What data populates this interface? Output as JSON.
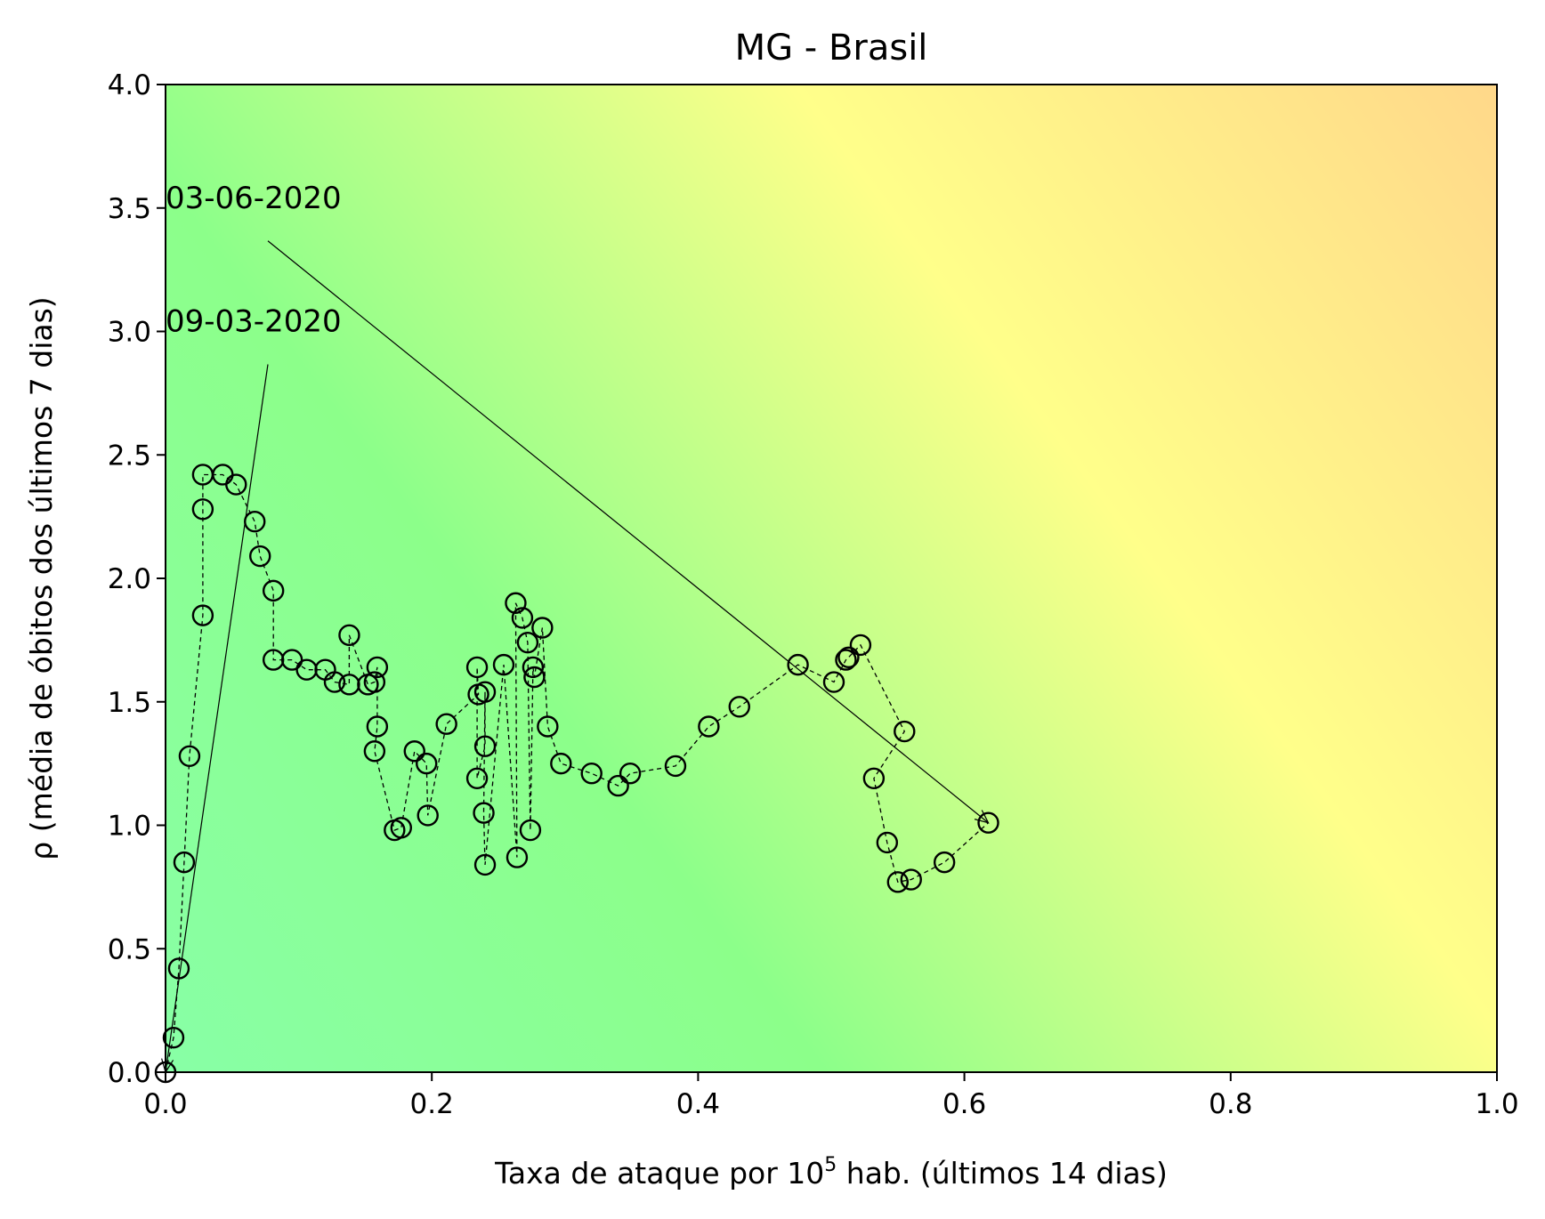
{
  "chart_data": {
    "type": "scatter",
    "title": "MG - Brasil",
    "xlabel_prefix": "Taxa de ataque por 10",
    "xlabel_sup": "5",
    "xlabel_suffix": " hab. (últimos 14 dias)",
    "ylabel": "ρ (média de óbitos dos últimos 7 dias)",
    "xlim": [
      0.0,
      1.0
    ],
    "ylim": [
      0.0,
      4.0
    ],
    "xticks": [
      "0.0",
      "0.2",
      "0.4",
      "0.6",
      "0.8",
      "1.0"
    ],
    "yticks": [
      "0.0",
      "0.5",
      "1.0",
      "1.5",
      "2.0",
      "2.5",
      "3.0",
      "3.5",
      "4.0"
    ],
    "grid": false,
    "background": "risk-gradient green to yellow to orange",
    "colors": {
      "green": "#88ff9a",
      "yellow": "#ffff8a",
      "orange": "#ffd88a",
      "marker": "#000000"
    },
    "series": [
      {
        "marker": "open-circle",
        "line": "dashed",
        "x": [
          0.0,
          0.006,
          0.01,
          0.014,
          0.018,
          0.028,
          0.028,
          0.028,
          0.043,
          0.053,
          0.067,
          0.071,
          0.081,
          0.081,
          0.095,
          0.106,
          0.12,
          0.127,
          0.138,
          0.138,
          0.152,
          0.157,
          0.159,
          0.159,
          0.157,
          0.172,
          0.177,
          0.187,
          0.196,
          0.197,
          0.211,
          0.235,
          0.234,
          0.234,
          0.24,
          0.24,
          0.239,
          0.24,
          0.254,
          0.264,
          0.263,
          0.268,
          0.272,
          0.274,
          0.276,
          0.277,
          0.283,
          0.287,
          0.297,
          0.32,
          0.34,
          0.349,
          0.383,
          0.408,
          0.431,
          0.475,
          0.502,
          0.511,
          0.513,
          0.522,
          0.555,
          0.532,
          0.542,
          0.55,
          0.56,
          0.585,
          0.618
        ],
        "y": [
          0.0,
          0.14,
          0.42,
          0.85,
          1.28,
          1.85,
          2.28,
          2.42,
          2.42,
          2.38,
          2.23,
          2.09,
          1.95,
          1.67,
          1.67,
          1.63,
          1.63,
          1.58,
          1.57,
          1.77,
          1.57,
          1.58,
          1.64,
          1.4,
          1.3,
          0.98,
          0.99,
          1.3,
          1.25,
          1.04,
          1.41,
          1.53,
          1.64,
          1.19,
          1.32,
          1.54,
          1.05,
          0.84,
          1.65,
          0.87,
          1.9,
          1.84,
          1.74,
          0.98,
          1.64,
          1.6,
          1.8,
          1.4,
          1.25,
          1.21,
          1.16,
          1.21,
          1.24,
          1.4,
          1.48,
          1.65,
          1.58,
          1.67,
          1.68,
          1.73,
          1.38,
          1.19,
          0.93,
          0.77,
          0.78,
          0.85,
          1.01
        ]
      }
    ],
    "annotations": [
      {
        "text": "09-03-2020",
        "text_x": 0.0,
        "text_y": 3.0,
        "target_x": 0.0,
        "target_y": 0.0
      },
      {
        "text": "03-06-2020",
        "text_x": 0.0,
        "text_y": 3.5,
        "target_x": 0.618,
        "target_y": 1.01
      }
    ]
  }
}
